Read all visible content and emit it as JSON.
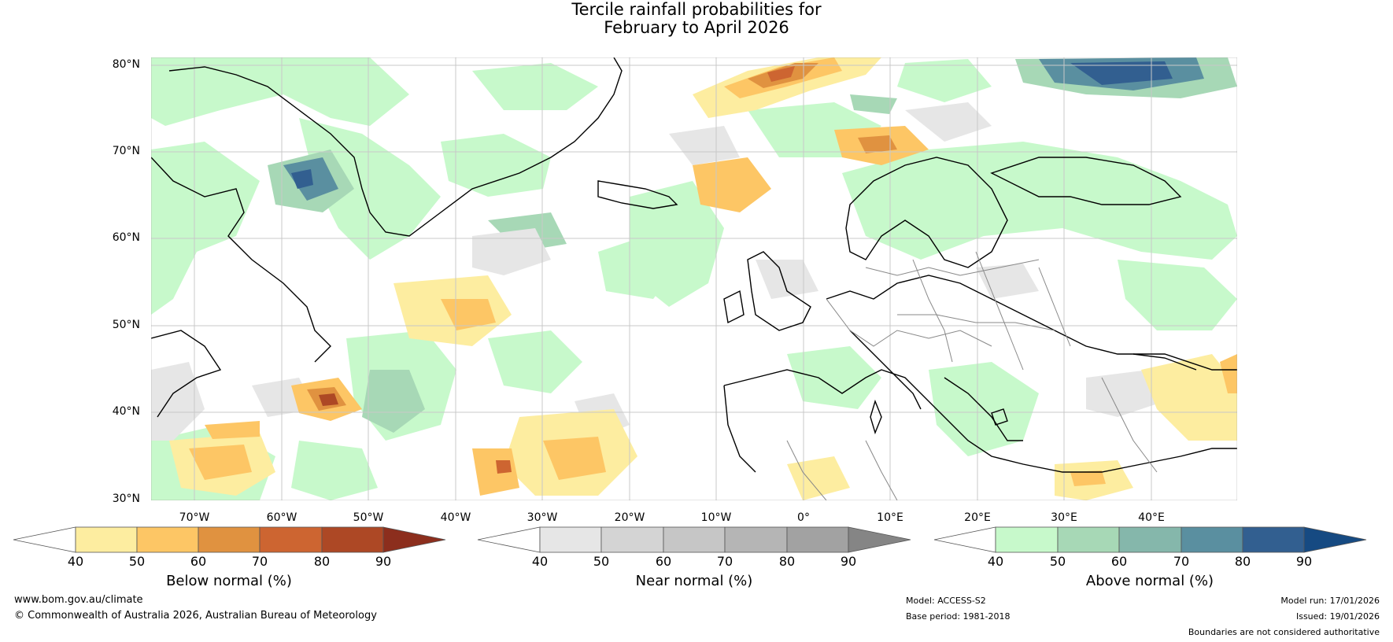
{
  "title_line1": "Tercile rainfall probabilities for",
  "title_line2": "February to April 2026",
  "lat_labels": [
    "80°N",
    "70°N",
    "60°N",
    "50°N",
    "40°N",
    "30°N"
  ],
  "lon_labels": [
    "70°W",
    "60°W",
    "50°W",
    "40°W",
    "30°W",
    "20°W",
    "10°W",
    "0°",
    "10°E",
    "20°E",
    "30°E",
    "40°E"
  ],
  "colorbars": [
    {
      "label": "Below normal (%)",
      "ticks": [
        "40",
        "50",
        "60",
        "70",
        "80",
        "90"
      ],
      "colors": [
        "#ffffff",
        "#fdeda0",
        "#fdc665",
        "#e09240",
        "#cd6531",
        "#ad4825",
        "#8c2e1d"
      ]
    },
    {
      "label": "Near normal (%)",
      "ticks": [
        "40",
        "50",
        "60",
        "70",
        "80",
        "90"
      ],
      "colors": [
        "#ffffff",
        "#e6e6e6",
        "#d4d4d4",
        "#c6c6c6",
        "#b5b5b5",
        "#a2a2a2",
        "#858585"
      ]
    },
    {
      "label": "Above normal (%)",
      "ticks": [
        "40",
        "50",
        "60",
        "70",
        "80",
        "90"
      ],
      "colors": [
        "#ffffff",
        "#c7f9cb",
        "#a7d8b6",
        "#85b7ab",
        "#5a8fa0",
        "#325f90",
        "#164a82"
      ]
    }
  ],
  "footer": {
    "url": "www.bom.gov.au/climate",
    "copyright": "© Commonwealth of Australia 2026, Australian Bureau of Meteorology",
    "model": "Model: ACCESS-S2",
    "base_period": "Base period: 1981-2018",
    "model_run": "Model run: 17/01/2026",
    "issued": "Issued: 19/01/2026",
    "disclaimer": "Boundaries are not considered authoritative"
  }
}
